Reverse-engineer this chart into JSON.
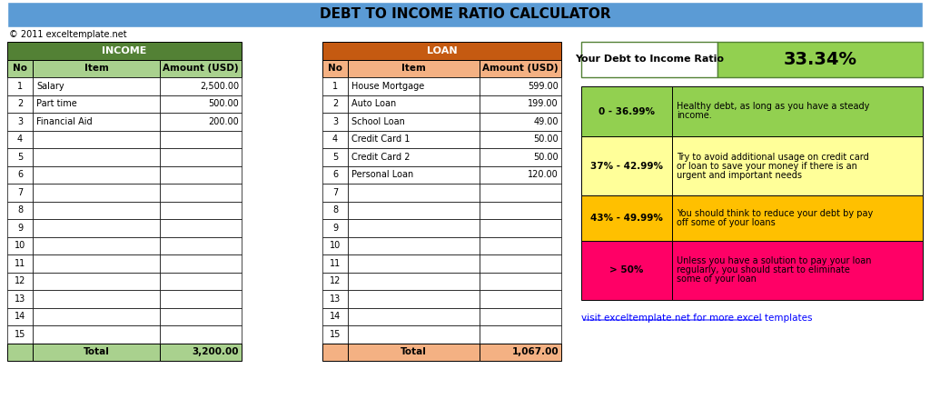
{
  "title": "DEBT TO INCOME RATIO CALCULATOR",
  "title_bg": "#5b9bd5",
  "copyright": "© 2011 exceltemplate.net",
  "income_header_bg": "#538135",
  "income_header_text": "INCOME",
  "income_subheader_bg": "#a9d18e",
  "loan_header_bg": "#c55a11",
  "loan_header_text": "LOAN",
  "loan_subheader_bg": "#f4b183",
  "col_headers": [
    "No",
    "Item",
    "Amount (USD)"
  ],
  "income_rows": [
    [
      1,
      "Salary",
      "2,500.00"
    ],
    [
      2,
      "Part time",
      "500.00"
    ],
    [
      3,
      "Financial Aid",
      "200.00"
    ],
    [
      4,
      "",
      ""
    ],
    [
      5,
      "",
      ""
    ],
    [
      6,
      "",
      ""
    ],
    [
      7,
      "",
      ""
    ],
    [
      8,
      "",
      ""
    ],
    [
      9,
      "",
      ""
    ],
    [
      10,
      "",
      ""
    ],
    [
      11,
      "",
      ""
    ],
    [
      12,
      "",
      ""
    ],
    [
      13,
      "",
      ""
    ],
    [
      14,
      "",
      ""
    ],
    [
      15,
      "",
      ""
    ]
  ],
  "income_total": [
    "",
    "Total",
    "3,200.00"
  ],
  "loan_rows": [
    [
      1,
      "House Mortgage",
      "599.00"
    ],
    [
      2,
      "Auto Loan",
      "199.00"
    ],
    [
      3,
      "School Loan",
      "49.00"
    ],
    [
      4,
      "Credit Card 1",
      "50.00"
    ],
    [
      5,
      "Credit Card 2",
      "50.00"
    ],
    [
      6,
      "Personal Loan",
      "120.00"
    ],
    [
      7,
      "",
      ""
    ],
    [
      8,
      "",
      ""
    ],
    [
      9,
      "",
      ""
    ],
    [
      10,
      "",
      ""
    ],
    [
      11,
      "",
      ""
    ],
    [
      12,
      "",
      ""
    ],
    [
      13,
      "",
      ""
    ],
    [
      14,
      "",
      ""
    ],
    [
      15,
      "",
      ""
    ]
  ],
  "loan_total": [
    "",
    "Total",
    "1,067.00"
  ],
  "ratio_label": "Your Debt to Income Ratio",
  "ratio_value": "33.34%",
  "ratio_label_bg": "#ffffff",
  "ratio_value_bg": "#92d050",
  "ratio_box_border": "#538135",
  "ranges": [
    {
      "range": "0 - 36.99%",
      "desc": "Healthy debt, as long as you have a steady\nincome.",
      "bg": "#92d050"
    },
    {
      "range": "37% - 42.99%",
      "desc": "Try to avoid additional usage on credit card\nor loan to save your money if there is an\nurgent and important needs",
      "bg": "#ffff99"
    },
    {
      "range": "43% - 49.99%",
      "desc": "You should think to reduce your debt by pay\noff some of your loans",
      "bg": "#ffc000"
    },
    {
      "range": "> 50%",
      "desc": "Unless you have a solution to pay your loan\nregularly, you should start to eliminate\nsome of your loan",
      "bg": "#ff0066"
    }
  ],
  "link_text": "visit exceltemplate.net for more excel templates",
  "link_color": "#0000ff",
  "fig_bg": "#ffffff",
  "table_border": "#000000",
  "total_row_bg": "#a9d18e",
  "total_loan_row_bg": "#f4b183"
}
